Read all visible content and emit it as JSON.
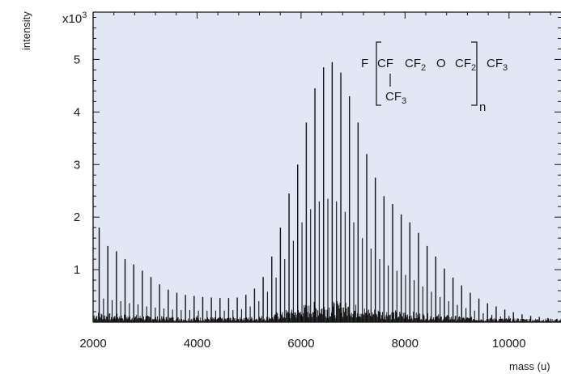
{
  "chart_data": {
    "type": "bar",
    "xlabel": "mass (u)",
    "ylabel": "intensity",
    "y_multiplier": "x10",
    "y_multiplier_exp": "3",
    "xlim": [
      2000,
      11000
    ],
    "ylim": [
      0,
      5.9
    ],
    "x_ticks": [
      "2000",
      "4000",
      "6000",
      "8000",
      "10000"
    ],
    "y_ticks": [
      "1",
      "2",
      "3",
      "4",
      "5"
    ],
    "background": "#e1e7f4",
    "line_color": "#111111",
    "peak_spacing": 166,
    "major_peaks": [
      {
        "x": 2117,
        "y": 1.8
      },
      {
        "x": 2283,
        "y": 1.45
      },
      {
        "x": 2449,
        "y": 1.35
      },
      {
        "x": 2615,
        "y": 1.2
      },
      {
        "x": 2781,
        "y": 1.1
      },
      {
        "x": 2947,
        "y": 0.98
      },
      {
        "x": 3113,
        "y": 0.86
      },
      {
        "x": 3279,
        "y": 0.72
      },
      {
        "x": 3445,
        "y": 0.62
      },
      {
        "x": 3611,
        "y": 0.56
      },
      {
        "x": 3777,
        "y": 0.52
      },
      {
        "x": 3943,
        "y": 0.5
      },
      {
        "x": 4109,
        "y": 0.48
      },
      {
        "x": 4275,
        "y": 0.47
      },
      {
        "x": 4441,
        "y": 0.46
      },
      {
        "x": 4607,
        "y": 0.46
      },
      {
        "x": 4773,
        "y": 0.47
      },
      {
        "x": 4939,
        "y": 0.52
      },
      {
        "x": 5105,
        "y": 0.64
      },
      {
        "x": 5271,
        "y": 0.86
      },
      {
        "x": 5437,
        "y": 1.25
      },
      {
        "x": 5603,
        "y": 1.8
      },
      {
        "x": 5769,
        "y": 2.45
      },
      {
        "x": 5935,
        "y": 3.0
      },
      {
        "x": 6101,
        "y": 3.8
      },
      {
        "x": 6267,
        "y": 4.45
      },
      {
        "x": 6433,
        "y": 4.85
      },
      {
        "x": 6599,
        "y": 4.95
      },
      {
        "x": 6765,
        "y": 4.75
      },
      {
        "x": 6931,
        "y": 4.3
      },
      {
        "x": 7097,
        "y": 3.8
      },
      {
        "x": 7263,
        "y": 3.2
      },
      {
        "x": 7429,
        "y": 2.75
      },
      {
        "x": 7595,
        "y": 2.4
      },
      {
        "x": 7761,
        "y": 2.25
      },
      {
        "x": 7927,
        "y": 2.05
      },
      {
        "x": 8093,
        "y": 1.9
      },
      {
        "x": 8259,
        "y": 1.7
      },
      {
        "x": 8425,
        "y": 1.45
      },
      {
        "x": 8591,
        "y": 1.25
      },
      {
        "x": 8757,
        "y": 1.02
      },
      {
        "x": 8923,
        "y": 0.85
      },
      {
        "x": 9089,
        "y": 0.7
      },
      {
        "x": 9255,
        "y": 0.56
      },
      {
        "x": 9421,
        "y": 0.45
      },
      {
        "x": 9587,
        "y": 0.36
      },
      {
        "x": 9753,
        "y": 0.3
      },
      {
        "x": 9919,
        "y": 0.24
      },
      {
        "x": 10085,
        "y": 0.19
      },
      {
        "x": 10251,
        "y": 0.15
      },
      {
        "x": 10417,
        "y": 0.12
      },
      {
        "x": 10583,
        "y": 0.1
      },
      {
        "x": 10749,
        "y": 0.08
      },
      {
        "x": 10915,
        "y": 0.06
      }
    ],
    "secondary_peaks": [
      {
        "x": 2200,
        "y": 0.45
      },
      {
        "x": 2366,
        "y": 0.42
      },
      {
        "x": 2532,
        "y": 0.4
      },
      {
        "x": 2698,
        "y": 0.36
      },
      {
        "x": 2864,
        "y": 0.34
      },
      {
        "x": 3030,
        "y": 0.3
      },
      {
        "x": 3196,
        "y": 0.28
      },
      {
        "x": 3362,
        "y": 0.26
      },
      {
        "x": 3528,
        "y": 0.24
      },
      {
        "x": 3694,
        "y": 0.23
      },
      {
        "x": 3860,
        "y": 0.23
      },
      {
        "x": 4026,
        "y": 0.22
      },
      {
        "x": 4192,
        "y": 0.22
      },
      {
        "x": 4358,
        "y": 0.22
      },
      {
        "x": 4524,
        "y": 0.22
      },
      {
        "x": 4690,
        "y": 0.23
      },
      {
        "x": 4856,
        "y": 0.25
      },
      {
        "x": 5022,
        "y": 0.3
      },
      {
        "x": 5188,
        "y": 0.4
      },
      {
        "x": 5354,
        "y": 0.58
      },
      {
        "x": 5520,
        "y": 0.85
      },
      {
        "x": 5686,
        "y": 1.2
      },
      {
        "x": 5852,
        "y": 1.55
      },
      {
        "x": 6018,
        "y": 1.9
      },
      {
        "x": 6184,
        "y": 2.15
      },
      {
        "x": 6350,
        "y": 2.3
      },
      {
        "x": 6516,
        "y": 2.35
      },
      {
        "x": 6682,
        "y": 2.3
      },
      {
        "x": 6848,
        "y": 2.1
      },
      {
        "x": 7014,
        "y": 1.9
      },
      {
        "x": 7180,
        "y": 1.6
      },
      {
        "x": 7346,
        "y": 1.4
      },
      {
        "x": 7512,
        "y": 1.2
      },
      {
        "x": 7678,
        "y": 1.08
      },
      {
        "x": 7844,
        "y": 0.98
      },
      {
        "x": 8010,
        "y": 0.9
      },
      {
        "x": 8176,
        "y": 0.8
      },
      {
        "x": 8342,
        "y": 0.68
      },
      {
        "x": 8508,
        "y": 0.58
      },
      {
        "x": 8674,
        "y": 0.48
      },
      {
        "x": 8840,
        "y": 0.4
      },
      {
        "x": 9006,
        "y": 0.33
      },
      {
        "x": 9172,
        "y": 0.27
      },
      {
        "x": 9338,
        "y": 0.22
      },
      {
        "x": 9504,
        "y": 0.17
      },
      {
        "x": 9670,
        "y": 0.14
      },
      {
        "x": 9836,
        "y": 0.11
      },
      {
        "x": 10002,
        "y": 0.09
      },
      {
        "x": 10168,
        "y": 0.07
      },
      {
        "x": 10334,
        "y": 0.06
      }
    ],
    "annotation": {
      "prefix": "F",
      "cf": "CF",
      "cf2": "CF",
      "cf2_sub": "2",
      "o": "O",
      "cf2b": "CF",
      "cf2b_sub": "2",
      "cf3": "CF",
      "cf3_sub": "3",
      "branch": "CF",
      "branch_sub": "3",
      "repeat": "n"
    }
  }
}
